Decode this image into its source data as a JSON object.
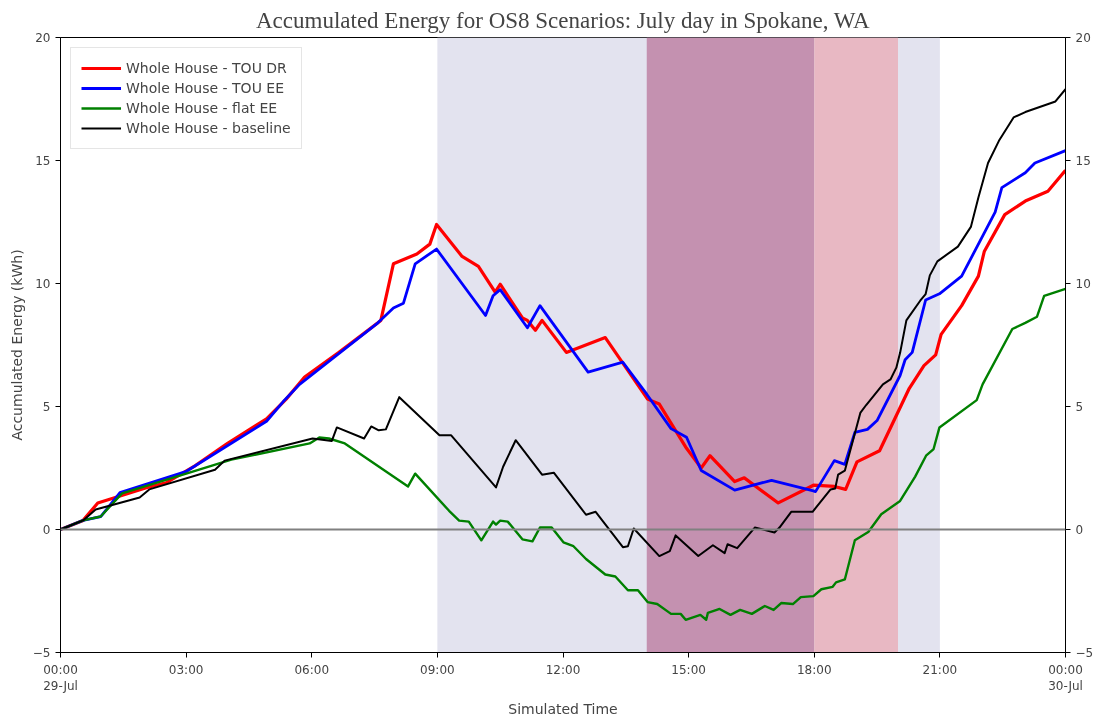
{
  "chart_data": {
    "type": "line",
    "title": "Accumulated Energy for OS8 Scenarios: July day in Spokane, WA",
    "xlabel": "Simulated Time",
    "ylabel": "Accumulated Energy (kWh)",
    "xlim": [
      0,
      24
    ],
    "xticks": [
      {
        "value": 0,
        "label": "00:00\n29-Jul"
      },
      {
        "value": 3,
        "label": "03:00"
      },
      {
        "value": 6,
        "label": "06:00"
      },
      {
        "value": 9,
        "label": "09:00"
      },
      {
        "value": 12,
        "label": "12:00"
      },
      {
        "value": 15,
        "label": "15:00"
      },
      {
        "value": 18,
        "label": "18:00"
      },
      {
        "value": 21,
        "label": "21:00"
      },
      {
        "value": 24,
        "label": "00:00\n30-Jul"
      }
    ],
    "ylim": [
      -5,
      20
    ],
    "yticks": [
      -5,
      0,
      5,
      10,
      15,
      20
    ],
    "y2lim": [
      -5,
      20
    ],
    "y2ticks": [
      -5,
      0,
      5,
      10,
      15,
      20
    ],
    "grid": false,
    "legend": "top left",
    "line_style": "solid",
    "marker": "none",
    "bands": [
      {
        "axis": "x",
        "from": 9,
        "to": 21,
        "color": "#e3e3ef"
      },
      {
        "axis": "x",
        "from": 14,
        "to": 18,
        "color": "#c491b0"
      },
      {
        "axis": "x",
        "from": 18,
        "to": 20,
        "color": "#e8b8c3"
      }
    ],
    "ref_lines": [
      {
        "axis": "y",
        "value": 0,
        "color": "#808080"
      }
    ],
    "series": [
      {
        "name": "Whole House - TOU DR",
        "color": "#ff0000",
        "x": [
          0,
          0.54,
          0.89,
          2.05,
          2.52,
          3.22,
          3.99,
          4.92,
          5.39,
          5.83,
          6.65,
          7.65,
          7.95,
          8.51,
          8.82,
          8.98,
          9.59,
          9.98,
          10.38,
          10.5,
          11.03,
          11.15,
          11.34,
          11.5,
          12.08,
          13.01,
          14.02,
          14.3,
          14.95,
          15.3,
          15.51,
          16.1,
          16.33,
          17.14,
          17.98,
          18.48,
          18.75,
          19.02,
          19.56,
          20.08,
          20.27,
          20.62,
          20.9,
          21.03,
          21.52,
          21.92,
          22.06,
          22.55,
          23.04,
          23.58,
          24
        ],
        "values": [
          0,
          0.37,
          1.08,
          1.7,
          1.9,
          2.6,
          3.5,
          4.5,
          5.3,
          6.2,
          7.2,
          8.5,
          10.8,
          11.2,
          11.6,
          12.4,
          11.1,
          10.7,
          9.65,
          9.97,
          8.6,
          8.5,
          8.1,
          8.5,
          7.2,
          7.8,
          5.3,
          5.1,
          3.3,
          2.5,
          3.0,
          1.95,
          2.1,
          1.08,
          1.8,
          1.75,
          1.63,
          2.75,
          3.2,
          5.06,
          5.74,
          6.66,
          7.1,
          7.93,
          9.1,
          10.3,
          11.3,
          12.8,
          13.35,
          13.75,
          14.6
        ]
      },
      {
        "name": "Whole House - TOU EE",
        "color": "#0000ff",
        "x": [
          0,
          0.54,
          0.96,
          1.42,
          2.99,
          4.92,
          5.32,
          5.71,
          7.58,
          7.95,
          8.19,
          8.47,
          8.98,
          10.15,
          10.33,
          10.5,
          11.15,
          11.45,
          12.6,
          13.43,
          14,
          14.58,
          14.95,
          15.3,
          16.1,
          16.98,
          17.98,
          18.03,
          18.48,
          18.73,
          18.97,
          19.27,
          19.5,
          20.05,
          20.17,
          20.34,
          20.66,
          20.99,
          21.52,
          22.32,
          22.48,
          23.04,
          23.27,
          24
        ],
        "values": [
          0,
          0.37,
          0.52,
          1.5,
          2.35,
          4.4,
          5.2,
          5.9,
          8.4,
          9.0,
          9.2,
          10.8,
          11.4,
          8.7,
          9.5,
          9.75,
          8.2,
          9.1,
          6.4,
          6.8,
          5.5,
          4.1,
          3.75,
          2.4,
          1.6,
          2.0,
          1.57,
          1.54,
          2.8,
          2.65,
          3.95,
          4.07,
          4.43,
          6.26,
          6.9,
          7.2,
          9.33,
          9.58,
          10.3,
          12.9,
          13.9,
          14.5,
          14.9,
          15.4
        ]
      },
      {
        "name": "Whole House - flat EE",
        "color": "#008000",
        "x": [
          0,
          0.54,
          0.96,
          1.47,
          3.06,
          4.08,
          5.95,
          6.18,
          6.41,
          6.79,
          8.3,
          8.47,
          9.28,
          9.52,
          9.75,
          10.05,
          10.33,
          10.4,
          10.5,
          10.68,
          11.03,
          11.27,
          11.45,
          11.73,
          12.01,
          12.25,
          12.55,
          13.01,
          13.25,
          13.55,
          13.79,
          14.02,
          14.25,
          14.58,
          14.81,
          14.93,
          15.28,
          15.42,
          15.46,
          15.74,
          16,
          16.23,
          16.51,
          16.82,
          17.03,
          17.21,
          17.49,
          17.68,
          17.98,
          18.17,
          18.44,
          18.52,
          18.73,
          18.97,
          19.29,
          19.6,
          20.05,
          20.41,
          20.67,
          20.85,
          20.99,
          21.88,
          22.02,
          22.73,
          23.04,
          23.32,
          23.49,
          24
        ],
        "values": [
          0,
          0.37,
          0.53,
          1.47,
          2.3,
          2.84,
          3.5,
          3.74,
          3.7,
          3.5,
          1.75,
          2.27,
          0.76,
          0.36,
          0.32,
          -0.44,
          0.32,
          0.2,
          0.36,
          0.32,
          -0.4,
          -0.48,
          0.08,
          0.08,
          -0.52,
          -0.68,
          -1.2,
          -1.83,
          -1.91,
          -2.47,
          -2.47,
          -2.95,
          -3.03,
          -3.43,
          -3.43,
          -3.67,
          -3.47,
          -3.67,
          -3.39,
          -3.23,
          -3.47,
          -3.27,
          -3.43,
          -3.11,
          -3.27,
          -2.99,
          -3.03,
          -2.75,
          -2.71,
          -2.43,
          -2.33,
          -2.15,
          -2.03,
          -0.44,
          -0.1,
          0.62,
          1.16,
          2.15,
          3.0,
          3.27,
          4.15,
          5.26,
          5.9,
          8.15,
          8.4,
          8.65,
          9.5,
          9.78
        ]
      },
      {
        "name": "Whole House - baseline",
        "color": "#000000",
        "x": [
          0,
          0.54,
          0.84,
          1.89,
          2.12,
          3.69,
          3.92,
          6.02,
          6.48,
          6.6,
          7.25,
          7.42,
          7.6,
          7.77,
          8.09,
          9.05,
          9.33,
          10.4,
          10.57,
          10.87,
          11.5,
          11.78,
          12.55,
          12.78,
          13.43,
          13.55,
          13.69,
          14.3,
          14.55,
          14.69,
          15.23,
          15.58,
          15.86,
          15.93,
          16.16,
          16.58,
          17.05,
          17.17,
          17.45,
          17.96,
          18.39,
          18.5,
          18.57,
          18.73,
          19.1,
          19.24,
          19.64,
          19.82,
          19.96,
          20.05,
          20.2,
          20.53,
          20.66,
          20.76,
          20.94,
          21.43,
          21.74,
          21.92,
          22.15,
          22.41,
          22.76,
          23.04,
          23.76,
          24
        ],
        "values": [
          0,
          0.37,
          0.81,
          1.3,
          1.63,
          2.43,
          2.8,
          3.7,
          3.6,
          4.15,
          3.7,
          4.19,
          4.03,
          4.07,
          5.38,
          3.83,
          3.83,
          1.71,
          2.55,
          3.63,
          2.23,
          2.31,
          0.6,
          0.72,
          -0.72,
          -0.68,
          0.04,
          -1.08,
          -0.88,
          -0.24,
          -1.08,
          -0.64,
          -0.96,
          -0.6,
          -0.76,
          0.08,
          -0.12,
          0.08,
          0.72,
          0.72,
          1.63,
          1.67,
          2.23,
          2.39,
          4.74,
          5.06,
          5.9,
          6.1,
          6.58,
          7.18,
          8.5,
          9.3,
          9.57,
          10.33,
          10.9,
          11.5,
          12.3,
          13.5,
          14.9,
          15.8,
          16.75,
          16.97,
          17.4,
          17.9
        ]
      }
    ]
  }
}
